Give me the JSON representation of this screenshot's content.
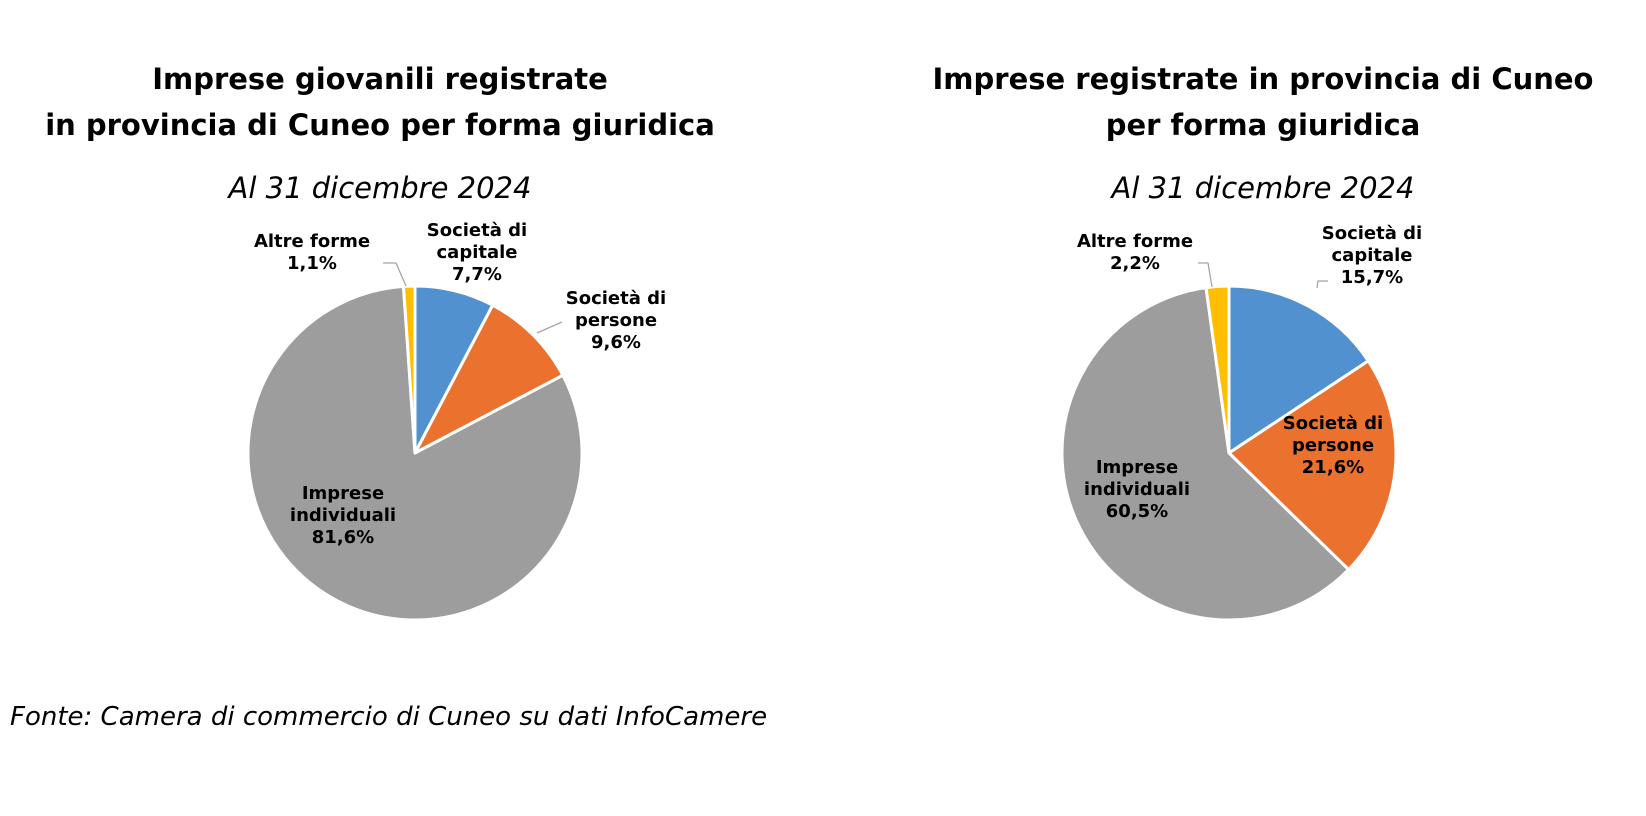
{
  "colors": {
    "societa_di_capitale": "#5191D0",
    "societa_di_persone": "#EB722E",
    "imprese_individuali": "#9D9D9D",
    "altre_forme": "#FFBF00"
  },
  "chart_data": [
    {
      "type": "pie",
      "title_lines": [
        "Imprese giovanili registrate",
        "in provincia di Cuneo per forma giuridica"
      ],
      "subtitle": "Al 31 dicembre 2024",
      "start": "12 o'clock, clockwise",
      "slices": [
        {
          "label_lines": [
            "Società di",
            "capitale"
          ],
          "value": 7.7,
          "value_label": "7,7%",
          "color": "#5191D0"
        },
        {
          "label_lines": [
            "Società di",
            "persone"
          ],
          "value": 9.6,
          "value_label": "9,6%",
          "color": "#EB722E"
        },
        {
          "label_lines": [
            "Imprese",
            "individuali"
          ],
          "value": 81.6,
          "value_label": "81,6%",
          "color": "#9D9D9D"
        },
        {
          "label_lines": [
            "Altre forme"
          ],
          "value": 1.1,
          "value_label": "1,1%",
          "color": "#FFBF00"
        }
      ]
    },
    {
      "type": "pie",
      "title_lines": [
        "Imprese registrate in provincia di Cuneo",
        "per forma giuridica"
      ],
      "subtitle": "Al 31 dicembre 2024",
      "start": "12 o'clock, clockwise",
      "slices": [
        {
          "label_lines": [
            "Società di",
            "capitale"
          ],
          "value": 15.7,
          "value_label": "15,7%",
          "color": "#5191D0"
        },
        {
          "label_lines": [
            "Società di",
            "persone"
          ],
          "value": 21.6,
          "value_label": "21,6%",
          "color": "#EB722E"
        },
        {
          "label_lines": [
            "Imprese",
            "individuali"
          ],
          "value": 60.5,
          "value_label": "60,5%",
          "color": "#9D9D9D"
        },
        {
          "label_lines": [
            "Altre forme"
          ],
          "value": 2.2,
          "value_label": "2,2%",
          "color": "#FFBF00"
        }
      ]
    }
  ],
  "source_note": "Fonte: Camera di commercio di Cuneo su dati InfoCamere"
}
